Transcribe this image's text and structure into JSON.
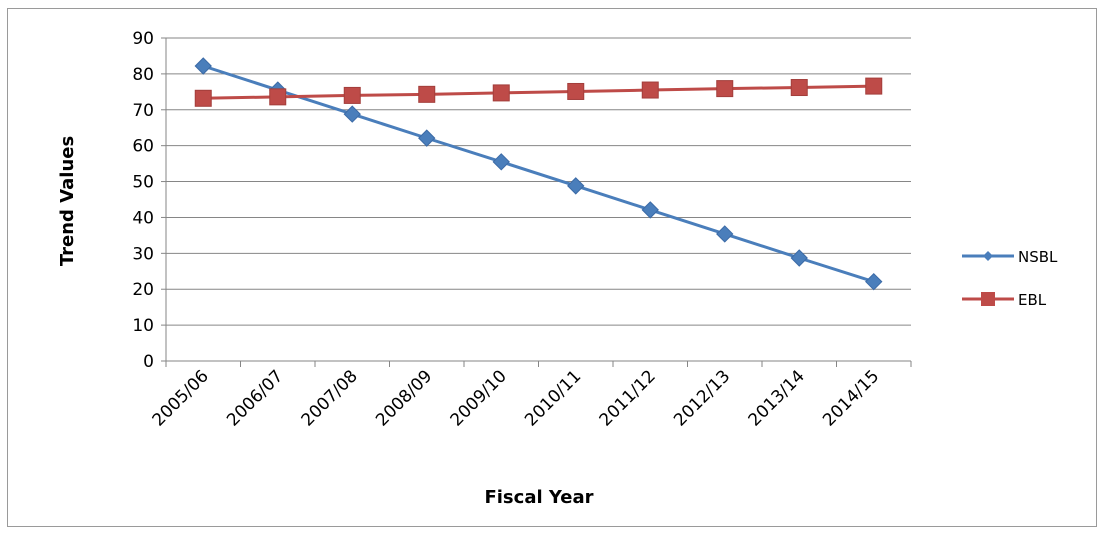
{
  "chart_data": {
    "type": "line",
    "title": "",
    "xlabel": "Fiscal Year",
    "ylabel": "Trend Values",
    "ylim": [
      0,
      90
    ],
    "yticks": [
      0,
      10,
      20,
      30,
      40,
      50,
      60,
      70,
      80,
      90
    ],
    "grid": true,
    "legend_position": "right",
    "categories": [
      "2005/06",
      "2006/07",
      "2007/08",
      "2008/09",
      "2009/10",
      "2010/11",
      "2011/12",
      "2012/13",
      "2013/14",
      "2014/15"
    ],
    "series": [
      {
        "name": "NSBL",
        "color": "#4a7ebb",
        "marker": "diamond",
        "values": [
          82.2,
          75.5,
          68.8,
          62.1,
          55.5,
          48.8,
          42.1,
          35.4,
          28.7,
          22.1
        ]
      },
      {
        "name": "EBL",
        "color": "#be4b48",
        "marker": "square",
        "values": [
          73.2,
          73.6,
          74.0,
          74.3,
          74.7,
          75.1,
          75.5,
          75.9,
          76.2,
          76.6
        ]
      }
    ]
  }
}
